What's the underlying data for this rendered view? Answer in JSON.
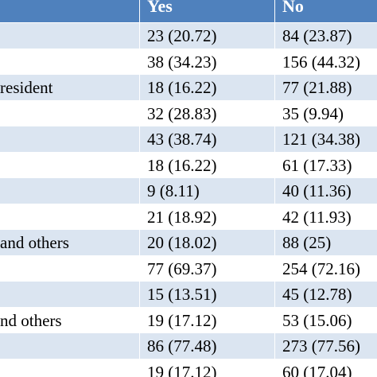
{
  "header": {
    "label": "",
    "yes": "Yes",
    "no": "No"
  },
  "rows": [
    {
      "label": "",
      "yes": "23 (20.72)",
      "no": "84 (23.87)"
    },
    {
      "label": "",
      "yes": "38 (34.23)",
      "no": "156 (44.32)"
    },
    {
      "label": "resident",
      "yes": "18 (16.22)",
      "no": "77 (21.88)"
    },
    {
      "label": "",
      "yes": "32 (28.83)",
      "no": "35 (9.94)"
    },
    {
      "label": "",
      "yes": "43 (38.74)",
      "no": "121 (34.38)"
    },
    {
      "label": "",
      "yes": "18 (16.22)",
      "no": "61 (17.33)"
    },
    {
      "label": "",
      "yes": "9 (8.11)",
      "no": "40 (11.36)"
    },
    {
      "label": "",
      "yes": "21 (18.92)",
      "no": "42 (11.93)"
    },
    {
      "label": "and others",
      "yes": "20 (18.02)",
      "no": "88 (25)"
    },
    {
      "label": "",
      "yes": "77 (69.37)",
      "no": "254 (72.16)"
    },
    {
      "label": "",
      "yes": "15 (13.51)",
      "no": "45 (12.78)"
    },
    {
      "label": "nd others",
      "yes": "19 (17.12)",
      "no": "53 (15.06)"
    },
    {
      "label": "",
      "yes": "86 (77.48)",
      "no": "273 (77.56)"
    },
    {
      "label": "",
      "yes": "19 (17.12)",
      "no": "60 (17.04)"
    }
  ]
}
